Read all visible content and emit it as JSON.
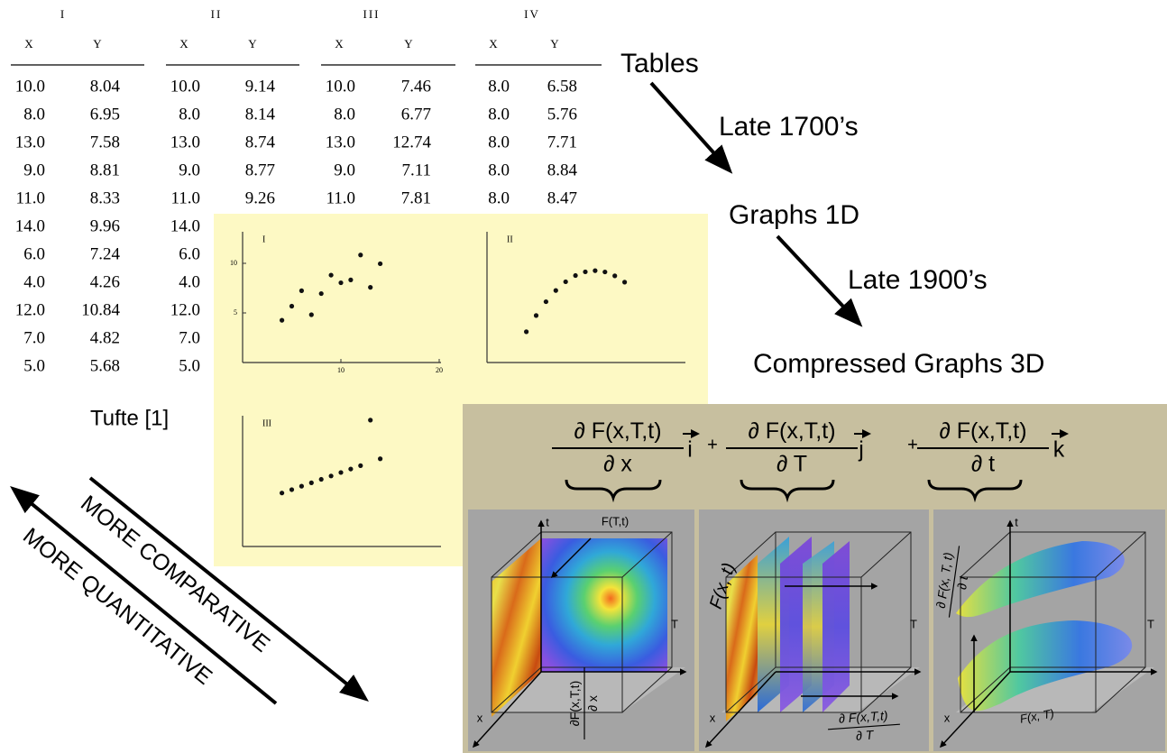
{
  "table": {
    "groups": [
      {
        "title": "I",
        "headers": [
          "X",
          "Y"
        ],
        "rows": [
          [
            "10.0",
            "8.04"
          ],
          [
            "8.0",
            "6.95"
          ],
          [
            "13.0",
            "7.58"
          ],
          [
            "9.0",
            "8.81"
          ],
          [
            "11.0",
            "8.33"
          ],
          [
            "14.0",
            "9.96"
          ],
          [
            "6.0",
            "7.24"
          ],
          [
            "4.0",
            "4.26"
          ],
          [
            "12.0",
            "10.84"
          ],
          [
            "7.0",
            "4.82"
          ],
          [
            "5.0",
            "5.68"
          ]
        ]
      },
      {
        "title": "II",
        "headers": [
          "X",
          "Y"
        ],
        "rows": [
          [
            "10.0",
            "9.14"
          ],
          [
            "8.0",
            "8.14"
          ],
          [
            "13.0",
            "8.74"
          ],
          [
            "9.0",
            "8.77"
          ],
          [
            "11.0",
            "9.26"
          ],
          [
            "14.0"
          ],
          [
            "6.0"
          ],
          [
            "4.0"
          ],
          [
            "12.0"
          ],
          [
            "7.0"
          ],
          [
            "5.0"
          ]
        ]
      },
      {
        "title": "III",
        "headers": [
          "X",
          "Y"
        ],
        "rows": [
          [
            "10.0",
            "7.46"
          ],
          [
            "8.0",
            "6.77"
          ],
          [
            "13.0",
            "12.74"
          ],
          [
            "9.0",
            "7.11"
          ],
          [
            "11.0",
            "7.81"
          ]
        ]
      },
      {
        "title": "IV",
        "headers": [
          "X",
          "Y"
        ],
        "rows": [
          [
            "8.0",
            "6.58"
          ],
          [
            "8.0",
            "5.76"
          ],
          [
            "8.0",
            "7.71"
          ],
          [
            "8.0",
            "8.84"
          ],
          [
            "8.0",
            "8.47"
          ]
        ]
      }
    ]
  },
  "plots": [
    {
      "label": "I",
      "xlim": [
        0,
        20
      ],
      "ylim": [
        0,
        13.5
      ],
      "xticks": [
        10,
        20
      ],
      "yticks": [
        5,
        10
      ],
      "points": {
        "x": [
          10,
          8,
          13,
          9,
          11,
          14,
          6,
          4,
          12,
          7,
          5
        ],
        "y": [
          8.04,
          6.95,
          7.58,
          8.81,
          8.33,
          9.96,
          7.24,
          4.26,
          10.84,
          4.82,
          5.68
        ]
      }
    },
    {
      "label": "II",
      "xlim": [
        0,
        20
      ],
      "ylim": [
        0,
        13.5
      ],
      "points": {
        "x": [
          10,
          8,
          13,
          9,
          11,
          14,
          6,
          4,
          12,
          7,
          5
        ],
        "y": [
          9.14,
          8.14,
          8.74,
          8.77,
          9.26,
          8.1,
          6.13,
          3.1,
          9.13,
          7.26,
          4.74
        ]
      }
    },
    {
      "label": "III",
      "xlim": [
        0,
        20
      ],
      "ylim": [
        0,
        13.5
      ],
      "points": {
        "x": [
          10,
          8,
          13,
          9,
          11,
          14,
          6,
          4,
          12,
          7,
          5
        ],
        "y": [
          7.46,
          6.77,
          12.74,
          7.11,
          7.81,
          8.84,
          6.08,
          5.39,
          8.15,
          6.42,
          5.73
        ]
      }
    }
  ],
  "source": "Tufte [1]",
  "timeline": {
    "stages": [
      "Tables",
      "Graphs 1D",
      "Compressed Graphs 3D"
    ],
    "transitions": [
      "Late 1700’s",
      "Late 1900’s"
    ]
  },
  "directions": [
    "MORE COMPARATIVE",
    "MORE QUANTITATIVE"
  ],
  "equation": {
    "terms": [
      {
        "numerator": "∂ F(x,T,t)",
        "denominator": "∂ x",
        "unit": "i"
      },
      {
        "numerator": "∂ F(x,T,t)",
        "denominator": "∂ T",
        "unit": "j"
      },
      {
        "numerator": "∂ F(x,T,t)",
        "denominator": "∂ t",
        "unit": "k"
      }
    ],
    "operators": [
      "+",
      "+"
    ]
  },
  "panels": [
    {
      "labels": [
        "t",
        "F(T,t)",
        "T",
        "x"
      ],
      "derivative": {
        "numerator": "∂F(x,T,t)",
        "denominator": "∂ x"
      }
    },
    {
      "labels": [
        "F(x, t)",
        "T",
        "x"
      ],
      "derivative": {
        "numerator": "∂ F(x,T,t)",
        "denominator": "∂ T"
      }
    },
    {
      "labels": [
        "t",
        "T",
        "x",
        "F(x, T)"
      ],
      "derivative": {
        "numerator": "∂ F(x, T, t)",
        "denominator": "∂ t"
      }
    }
  ]
}
